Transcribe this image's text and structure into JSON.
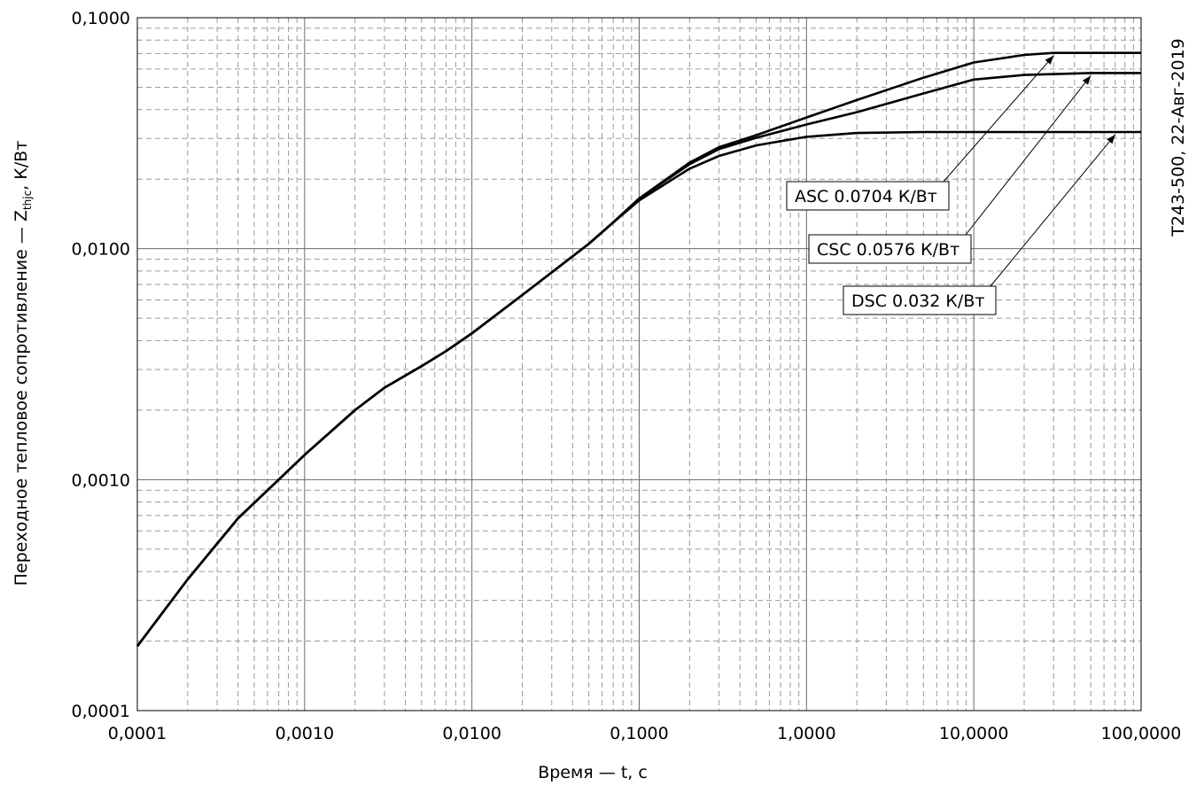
{
  "chart_data": {
    "type": "line",
    "xlabel": "Время — t, с",
    "ylabel_prefix": "Переходное тепловое сопротивление — Z",
    "ylabel_sub": "thjc",
    "ylabel_suffix": ", К/Вт",
    "side_label": "Т243-500, 22-Авг-2019",
    "x_scale": "log",
    "y_scale": "log",
    "xlim": [
      0.0001,
      100
    ],
    "ylim": [
      0.0001,
      0.1
    ],
    "x_ticks": [
      {
        "value": 0.0001,
        "label": "0,0001"
      },
      {
        "value": 0.001,
        "label": "0,0010"
      },
      {
        "value": 0.01,
        "label": "0,0100"
      },
      {
        "value": 0.1,
        "label": "0,1000"
      },
      {
        "value": 1,
        "label": "1,0000"
      },
      {
        "value": 10,
        "label": "10,0000"
      },
      {
        "value": 100,
        "label": "100,0000"
      }
    ],
    "y_ticks": [
      {
        "value": 0.0001,
        "label": "0,0001"
      },
      {
        "value": 0.001,
        "label": "0,0010"
      },
      {
        "value": 0.01,
        "label": "0,0100"
      },
      {
        "value": 0.1,
        "label": "0,1000"
      }
    ],
    "grid": true,
    "series": [
      {
        "name": "ASC 0.0704 К/Вт",
        "x": [
          0.0001,
          0.0002,
          0.0004,
          0.0007,
          0.001,
          0.002,
          0.003,
          0.005,
          0.007,
          0.01,
          0.02,
          0.03,
          0.05,
          0.07,
          0.1,
          0.2,
          0.3,
          0.5,
          1,
          2,
          5,
          10,
          20,
          30,
          50,
          100
        ],
        "y": [
          0.00019,
          0.00037,
          0.00068,
          0.001,
          0.00128,
          0.002,
          0.0025,
          0.0031,
          0.0036,
          0.0043,
          0.0063,
          0.0079,
          0.0105,
          0.013,
          0.0165,
          0.0236,
          0.0275,
          0.031,
          0.037,
          0.044,
          0.055,
          0.064,
          0.069,
          0.0704,
          0.0704,
          0.0704
        ],
        "callout": {
          "label": "ASC 0.0704 К/Вт",
          "arrow_x": 30,
          "arrow_y": 0.0704
        }
      },
      {
        "name": "CSC 0.0576 К/Вт",
        "x": [
          0.0001,
          0.0002,
          0.0004,
          0.0007,
          0.001,
          0.002,
          0.003,
          0.005,
          0.007,
          0.01,
          0.02,
          0.03,
          0.05,
          0.07,
          0.1,
          0.2,
          0.3,
          0.5,
          1,
          2,
          5,
          10,
          20,
          50,
          100
        ],
        "y": [
          0.00019,
          0.00037,
          0.00068,
          0.001,
          0.00128,
          0.002,
          0.0025,
          0.0031,
          0.0036,
          0.0043,
          0.0063,
          0.0079,
          0.0105,
          0.013,
          0.0165,
          0.0232,
          0.027,
          0.0302,
          0.0345,
          0.039,
          0.047,
          0.054,
          0.0565,
          0.0576,
          0.0576
        ],
        "callout": {
          "label": "CSC 0.0576 К/Вт",
          "arrow_x": 50,
          "arrow_y": 0.0576
        }
      },
      {
        "name": "DSC 0.032 К/Вт",
        "x": [
          0.0001,
          0.0002,
          0.0004,
          0.0007,
          0.001,
          0.002,
          0.003,
          0.005,
          0.007,
          0.01,
          0.02,
          0.03,
          0.05,
          0.07,
          0.1,
          0.2,
          0.3,
          0.5,
          1,
          2,
          5,
          10,
          100
        ],
        "y": [
          0.00019,
          0.00037,
          0.00068,
          0.001,
          0.00128,
          0.002,
          0.0025,
          0.0031,
          0.0036,
          0.0043,
          0.0063,
          0.0079,
          0.0105,
          0.013,
          0.0162,
          0.0222,
          0.0252,
          0.028,
          0.0305,
          0.0317,
          0.032,
          0.032,
          0.032
        ],
        "callout": {
          "label": "DSC 0.032 К/Вт",
          "arrow_x": 70,
          "arrow_y": 0.032
        }
      }
    ]
  }
}
